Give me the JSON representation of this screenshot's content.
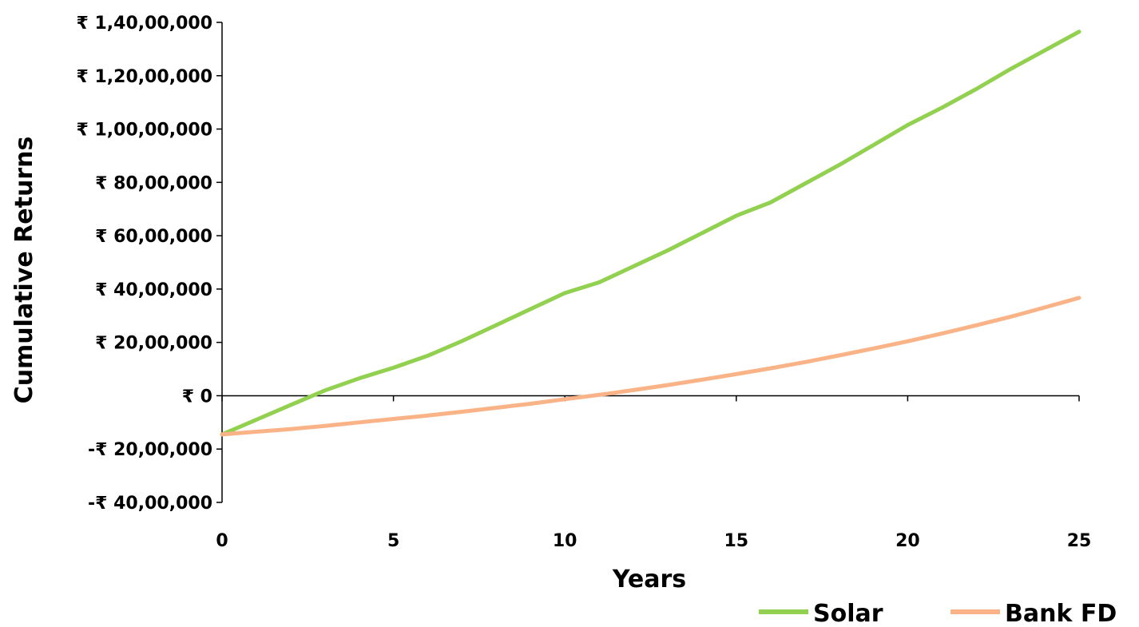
{
  "chart_data": {
    "type": "line",
    "title": "",
    "xlabel": "Years",
    "ylabel": "Cumulative Returns",
    "xlim": [
      0,
      25
    ],
    "ylim": [
      -4000000,
      14000000
    ],
    "x_ticks": [
      0,
      5,
      10,
      15,
      20,
      25
    ],
    "x_tick_labels": [
      "0",
      "5",
      "10",
      "15",
      "20",
      "25"
    ],
    "y_ticks": [
      -4000000,
      -2000000,
      0,
      2000000,
      4000000,
      6000000,
      8000000,
      10000000,
      12000000,
      14000000
    ],
    "y_tick_labels": [
      "-₹ 40,00,000",
      "-₹ 20,00,000",
      "₹ 0",
      "₹ 20,00,000",
      "₹ 40,00,000",
      "₹ 60,00,000",
      "₹ 80,00,000",
      "₹ 1,00,00,000",
      "₹ 1,20,00,000",
      "₹ 1,40,00,000"
    ],
    "grid": false,
    "legend_position": "bottom-right",
    "x": [
      0,
      1,
      2,
      3,
      4,
      5,
      6,
      7,
      8,
      9,
      10,
      11,
      12,
      13,
      14,
      15,
      16,
      17,
      18,
      19,
      20,
      21,
      22,
      23,
      24,
      25
    ],
    "series": [
      {
        "name": "Solar",
        "color": "#92D050",
        "values": [
          -1450000,
          -900000,
          -350000,
          200000,
          650000,
          1050000,
          1500000,
          2050000,
          2650000,
          3250000,
          3850000,
          4250000,
          4850000,
          5450000,
          6100000,
          6750000,
          7250000,
          7950000,
          8650000,
          9400000,
          10150000,
          10800000,
          11500000,
          12250000,
          12950000,
          13650000
        ]
      },
      {
        "name": "Bank FD",
        "color": "#FAB387",
        "values": [
          -1450000,
          -1350000,
          -1250000,
          -1130000,
          -1000000,
          -870000,
          -740000,
          -600000,
          -450000,
          -300000,
          -130000,
          30000,
          210000,
          400000,
          600000,
          810000,
          1030000,
          1260000,
          1510000,
          1770000,
          2040000,
          2330000,
          2640000,
          2960000,
          3310000,
          3670000
        ]
      }
    ]
  }
}
